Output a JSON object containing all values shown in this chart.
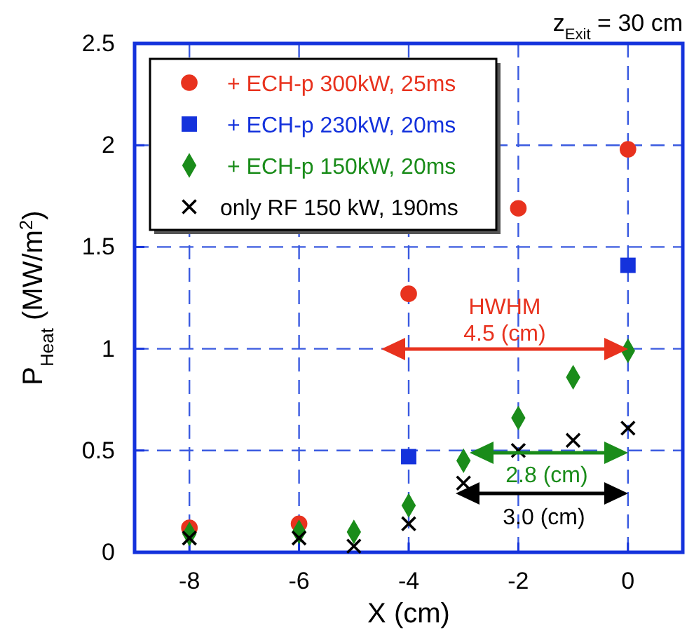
{
  "chart_data": {
    "type": "scatter",
    "title": "z$_{Exit}$ = 30 cm",
    "xlabel": "X (cm)",
    "ylabel": "P$_{Heat}$ (MW/m$^{2}$)",
    "xlim": [
      -9,
      1
    ],
    "xticks": [
      -8,
      -6,
      -4,
      -2,
      0
    ],
    "ylim": [
      0,
      2.5
    ],
    "yticks": [
      0,
      0.5,
      1,
      1.5,
      2,
      2.5
    ],
    "grid": true,
    "legend": "top left",
    "series": [
      {
        "name": "+ ECH-p 300kW, 25ms",
        "color": "#e8321e",
        "marker": "circle",
        "x": [
          -8,
          -6,
          -4,
          -2,
          0
        ],
        "values": [
          0.12,
          0.14,
          1.27,
          1.69,
          1.98
        ]
      },
      {
        "name": "+ ECH-p 230kW, 20ms",
        "color": "#1432dc",
        "marker": "square",
        "x": [
          -4,
          0
        ],
        "values": [
          0.47,
          1.41
        ]
      },
      {
        "name": "+ ECH-p 150kW, 20ms",
        "color": "#1a8c1a",
        "marker": "diamond",
        "x": [
          -8,
          -6,
          -5,
          -4,
          -3,
          -2,
          -1,
          0
        ],
        "values": [
          0.09,
          0.1,
          0.1,
          0.23,
          0.45,
          0.66,
          0.86,
          0.99
        ]
      },
      {
        "name": "only RF 150 kW, 190ms",
        "color": "#000000",
        "marker": "cross",
        "x": [
          -8,
          -6,
          -5,
          -4,
          -3,
          -2,
          -1,
          0
        ],
        "values": [
          0.07,
          0.07,
          0.03,
          0.14,
          0.34,
          0.5,
          0.55,
          0.61
        ]
      }
    ],
    "annotations": [
      "HWHM",
      "4.5 (cm)",
      "2.8 (cm)",
      "3.0 (cm)"
    ]
  }
}
